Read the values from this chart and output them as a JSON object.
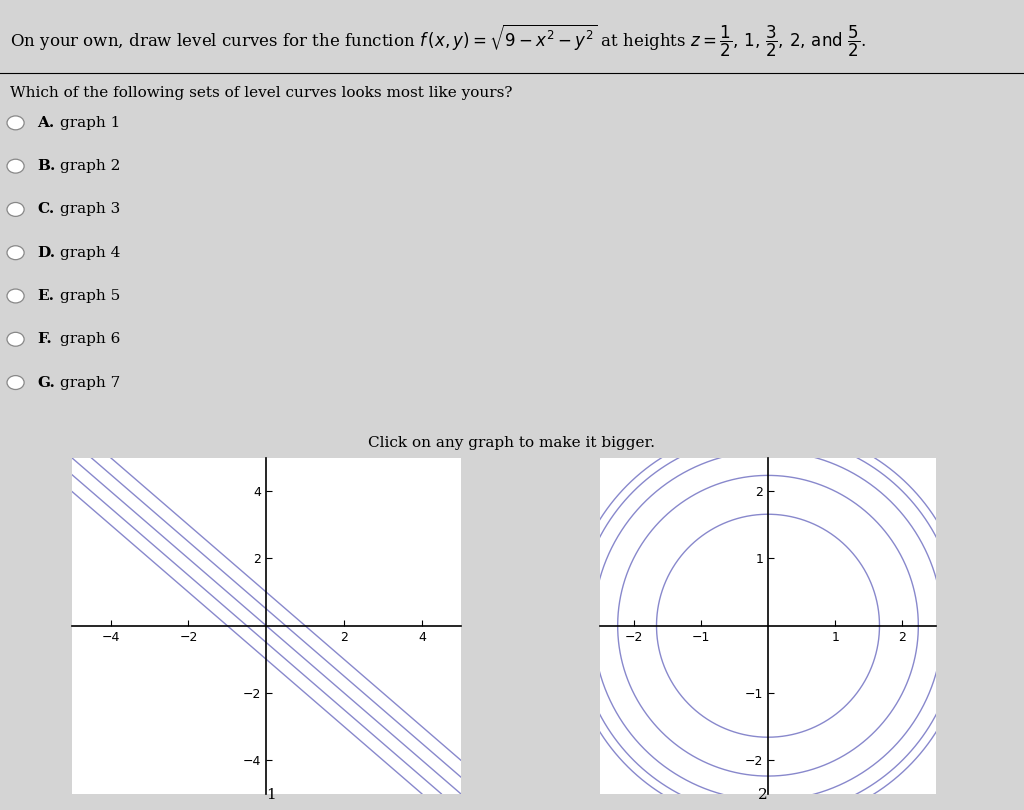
{
  "background_color": "#d4d4d4",
  "question_text": "Which of the following sets of level curves looks most like yours?",
  "options": [
    "A.",
    "B.",
    "C.",
    "D.",
    "E.",
    "F.",
    "G."
  ],
  "option_labels": [
    "graph 1",
    "graph 2",
    "graph 3",
    "graph 4",
    "graph 5",
    "graph 6",
    "graph 7"
  ],
  "click_text": "Click on any graph to make it bigger.",
  "label1": "1",
  "label2": "2",
  "graph1_xlim": [
    -5,
    5
  ],
  "graph1_ylim": [
    -5,
    5
  ],
  "graph1_xticks": [
    -4,
    -2,
    2,
    4
  ],
  "graph1_yticks": [
    -4,
    -2,
    2,
    4
  ],
  "graph2_xlim": [
    -2.5,
    2.5
  ],
  "graph2_ylim": [
    -2.5,
    2.5
  ],
  "graph2_xticks": [
    -2,
    -1,
    1,
    2
  ],
  "graph2_yticks": [
    -2,
    -1,
    1,
    2
  ],
  "z_values": [
    0.5,
    1.0,
    1.5,
    2.0,
    2.5
  ],
  "line_intercepts": [
    -1.0,
    -0.5,
    0.0,
    0.5,
    1.0
  ],
  "curve_color": "#8888cc",
  "line_width": 1.0,
  "panel_bg": "#ffffff",
  "title_fontsize": 12,
  "option_fontsize": 11,
  "click_fontsize": 11,
  "axis_label_fontsize": 9
}
